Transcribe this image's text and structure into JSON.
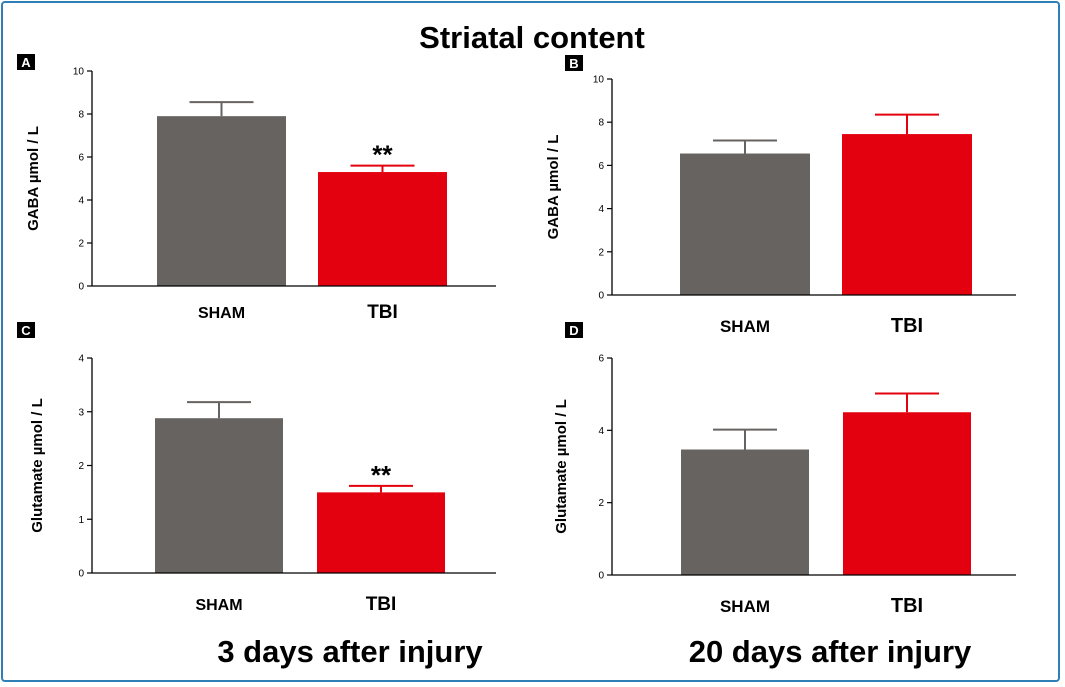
{
  "figure": {
    "title": "Striatal content",
    "captions": [
      "3 days after injury",
      "20 days after injury"
    ]
  },
  "colors": {
    "sham": "#676361",
    "tbi": "#e3000f",
    "frame": "#2f7fb6",
    "axis": "#000000"
  },
  "chart_data": [
    {
      "type": "bar",
      "panel": "A",
      "categories": [
        "SHAM",
        "TBI"
      ],
      "values": [
        7.9,
        5.3
      ],
      "errors": [
        0.65,
        0.3
      ],
      "significance": [
        "",
        "**"
      ],
      "ylabel": "GABA µmol / L",
      "ylim": [
        0,
        10
      ],
      "yticks": [
        0,
        2,
        4,
        6,
        8,
        10
      ],
      "grid": false
    },
    {
      "type": "bar",
      "panel": "B",
      "categories": [
        "SHAM",
        "TBI"
      ],
      "values": [
        6.55,
        7.45
      ],
      "errors": [
        0.6,
        0.9
      ],
      "significance": [
        "",
        ""
      ],
      "ylabel": "GABA µmol / L",
      "ylim": [
        0,
        10
      ],
      "yticks": [
        0,
        2,
        4,
        6,
        8,
        10
      ],
      "grid": false
    },
    {
      "type": "bar",
      "panel": "C",
      "categories": [
        "SHAM",
        "TBI"
      ],
      "values": [
        2.88,
        1.5
      ],
      "errors": [
        0.3,
        0.12
      ],
      "significance": [
        "",
        "**"
      ],
      "ylabel": "Glutamate µmol / L",
      "ylim": [
        0,
        4
      ],
      "yticks": [
        0,
        1,
        2,
        3,
        4
      ],
      "grid": false
    },
    {
      "type": "bar",
      "panel": "D",
      "categories": [
        "SHAM",
        "TBI"
      ],
      "values": [
        3.47,
        4.5
      ],
      "errors": [
        0.55,
        0.52
      ],
      "significance": [
        "",
        ""
      ],
      "ylabel": "Glutamate µmol / L",
      "ylim": [
        0,
        6
      ],
      "yticks": [
        0,
        2,
        4,
        6
      ],
      "grid": false
    }
  ]
}
